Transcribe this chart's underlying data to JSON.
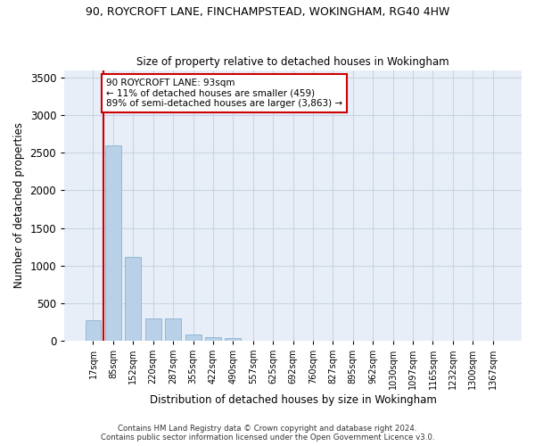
{
  "title_line1": "90, ROYCROFT LANE, FINCHAMPSTEAD, WOKINGHAM, RG40 4HW",
  "title_line2": "Size of property relative to detached houses in Wokingham",
  "xlabel": "Distribution of detached houses by size in Wokingham",
  "ylabel": "Number of detached properties",
  "bar_color": "#b8d0e8",
  "bar_edgecolor": "#7aaac8",
  "grid_color": "#c8d4e4",
  "background_color": "#e8eef8",
  "annotation_text": "90 ROYCROFT LANE: 93sqm\n← 11% of detached houses are smaller (459)\n89% of semi-detached houses are larger (3,863) →",
  "vline_color": "#cc0000",
  "annotation_box_edgecolor": "#cc0000",
  "footer_line1": "Contains HM Land Registry data © Crown copyright and database right 2024.",
  "footer_line2": "Contains public sector information licensed under the Open Government Licence v3.0.",
  "categories": [
    "17sqm",
    "85sqm",
    "152sqm",
    "220sqm",
    "287sqm",
    "355sqm",
    "422sqm",
    "490sqm",
    "557sqm",
    "625sqm",
    "692sqm",
    "760sqm",
    "827sqm",
    "895sqm",
    "962sqm",
    "1030sqm",
    "1097sqm",
    "1165sqm",
    "1232sqm",
    "1300sqm",
    "1367sqm"
  ],
  "values": [
    270,
    2600,
    1120,
    290,
    290,
    80,
    50,
    35,
    0,
    0,
    0,
    0,
    0,
    0,
    0,
    0,
    0,
    0,
    0,
    0,
    0
  ],
  "ylim": [
    0,
    3600
  ],
  "yticks": [
    0,
    500,
    1000,
    1500,
    2000,
    2500,
    3000,
    3500
  ]
}
